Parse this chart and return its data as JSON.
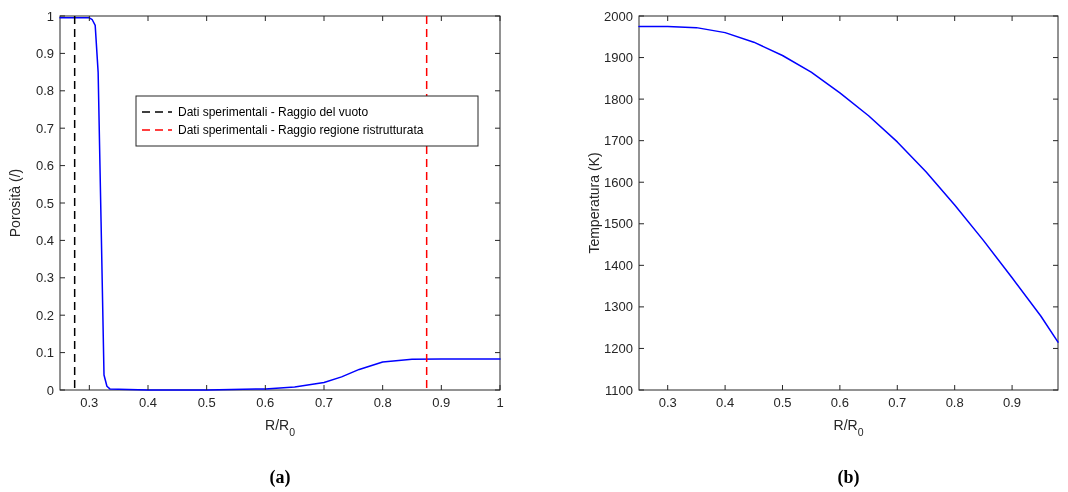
{
  "chart_data": [
    {
      "type": "line",
      "title": "(a)",
      "xlabel": "R/R$_{0}$",
      "ylabel": "Porosità (/)",
      "xlim": [
        0.25,
        1
      ],
      "ylim": [
        0,
        1
      ],
      "xticks": [
        0.3,
        0.4,
        0.5,
        0.6,
        0.7,
        0.8,
        0.9,
        1
      ],
      "yticks": [
        0,
        0.1,
        0.2,
        0.3,
        0.4,
        0.5,
        0.6,
        0.7,
        0.8,
        0.9,
        1
      ],
      "legend": "top right",
      "grid": false,
      "series": [
        {
          "color": "#0000ff",
          "x": [
            0.25,
            0.3,
            0.305,
            0.31,
            0.315,
            0.32,
            0.325,
            0.33,
            0.335,
            0.35,
            0.4,
            0.5,
            0.6,
            0.65,
            0.7,
            0.73,
            0.76,
            0.8,
            0.85,
            0.9,
            1
          ],
          "values": [
            0.995,
            0.995,
            0.99,
            0.975,
            0.85,
            0.45,
            0.04,
            0.01,
            0.003,
            0.002,
            0,
            0,
            0.003,
            0.008,
            0.02,
            0.035,
            0.055,
            0.075,
            0.082,
            0.083,
            0.083
          ]
        }
      ],
      "ref_lines": [
        {
          "axis": "x",
          "value": 0.275,
          "label": "Dati sperimentali - Raggio del vuoto",
          "color": "#000000",
          "line_style": "dashed"
        },
        {
          "axis": "x",
          "value": 0.875,
          "label": "Dati sperimentali - Raggio regione ristrutturata",
          "color": "#ff0000",
          "line_style": "dashed"
        }
      ]
    },
    {
      "type": "line",
      "title": "(b)",
      "xlabel": "R/R$_{0}$",
      "ylabel": "Temperatura (K)",
      "xlim": [
        0.25,
        0.98
      ],
      "ylim": [
        1100,
        2000
      ],
      "xticks": [
        0.3,
        0.4,
        0.5,
        0.6,
        0.7,
        0.8,
        0.9
      ],
      "yticks": [
        1100,
        1200,
        1300,
        1400,
        1500,
        1600,
        1700,
        1800,
        1900,
        2000
      ],
      "grid": false,
      "series": [
        {
          "color": "#0000ff",
          "x": [
            0.25,
            0.3,
            0.35,
            0.4,
            0.45,
            0.5,
            0.55,
            0.6,
            0.65,
            0.7,
            0.75,
            0.8,
            0.85,
            0.9,
            0.95,
            0.98
          ],
          "values": [
            1975,
            1975,
            1972,
            1960,
            1937,
            1905,
            1865,
            1815,
            1760,
            1697,
            1625,
            1545,
            1460,
            1370,
            1278,
            1215
          ]
        }
      ]
    }
  ]
}
